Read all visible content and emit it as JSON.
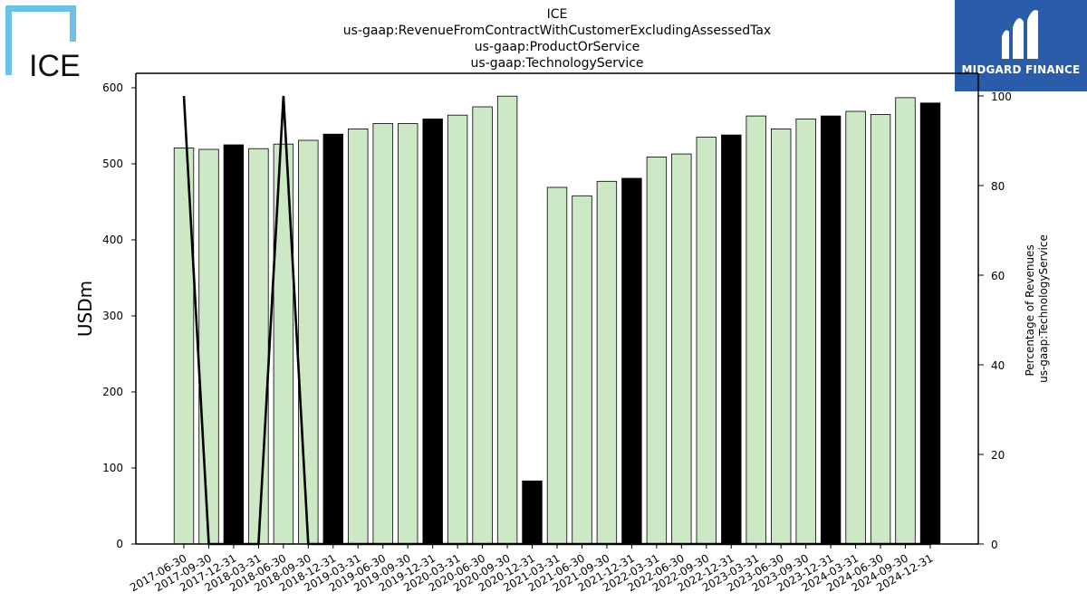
{
  "logos": {
    "left_text": "ICE",
    "right_text": "MIDGARD FINANCE"
  },
  "colors": {
    "bar_default": "#cce8c5",
    "bar_highlight": "#000000",
    "line": "#000000",
    "ice_blue": "#6ac2e8",
    "midgard_blue": "#2a5caa"
  },
  "chart_data": {
    "type": "bar",
    "title_lines": [
      "ICE",
      "us-gaap:RevenueFromContractWithCustomerExcludingAssessedTax",
      "us-gaap:ProductOrService",
      "us-gaap:TechnologyService"
    ],
    "ylabel": "USDm",
    "ylabel_right": [
      "Percentage of Revenues",
      "us-gaap:TechnologyService"
    ],
    "ylim": [
      0,
      620
    ],
    "ylim_right": [
      0,
      105
    ],
    "yticks": [
      0,
      100,
      200,
      300,
      400,
      500,
      600
    ],
    "yticks_right": [
      0,
      20,
      40,
      60,
      80,
      100
    ],
    "categories": [
      "2017-06-30",
      "2017-09-30",
      "2017-12-31",
      "2018-03-31",
      "2018-06-30",
      "2018-09-30",
      "2018-12-31",
      "2019-03-31",
      "2019-06-30",
      "2019-09-30",
      "2019-12-31",
      "2020-03-31",
      "2020-06-30",
      "2020-09-30",
      "2020-12-31",
      "2021-03-31",
      "2021-06-30",
      "2021-09-30",
      "2021-12-31",
      "2022-03-31",
      "2022-06-30",
      "2022-09-30",
      "2022-12-31",
      "2023-03-31",
      "2023-06-30",
      "2023-09-30",
      "2023-12-31",
      "2024-03-31",
      "2024-06-30",
      "2024-09-30",
      "2024-12-31"
    ],
    "values": [
      521,
      519,
      525,
      520,
      526,
      531,
      539,
      546,
      553,
      553,
      559,
      564,
      575,
      589,
      83,
      469,
      458,
      477,
      481,
      509,
      513,
      535,
      538,
      563,
      546,
      559,
      563,
      569,
      565,
      587,
      580
    ],
    "highlight": [
      false,
      false,
      true,
      false,
      false,
      false,
      true,
      false,
      false,
      false,
      true,
      false,
      false,
      false,
      true,
      false,
      false,
      false,
      true,
      false,
      false,
      false,
      true,
      false,
      false,
      false,
      true,
      false,
      false,
      false,
      true
    ],
    "series_right": {
      "values": [
        100,
        0,
        0,
        0,
        100,
        0,
        0,
        0,
        0,
        0,
        0,
        0,
        0,
        0,
        0,
        0,
        0,
        0,
        0,
        0,
        0,
        0,
        0,
        0,
        0,
        0,
        0,
        0,
        0,
        0,
        0
      ]
    },
    "grid": false,
    "legend": "none"
  }
}
